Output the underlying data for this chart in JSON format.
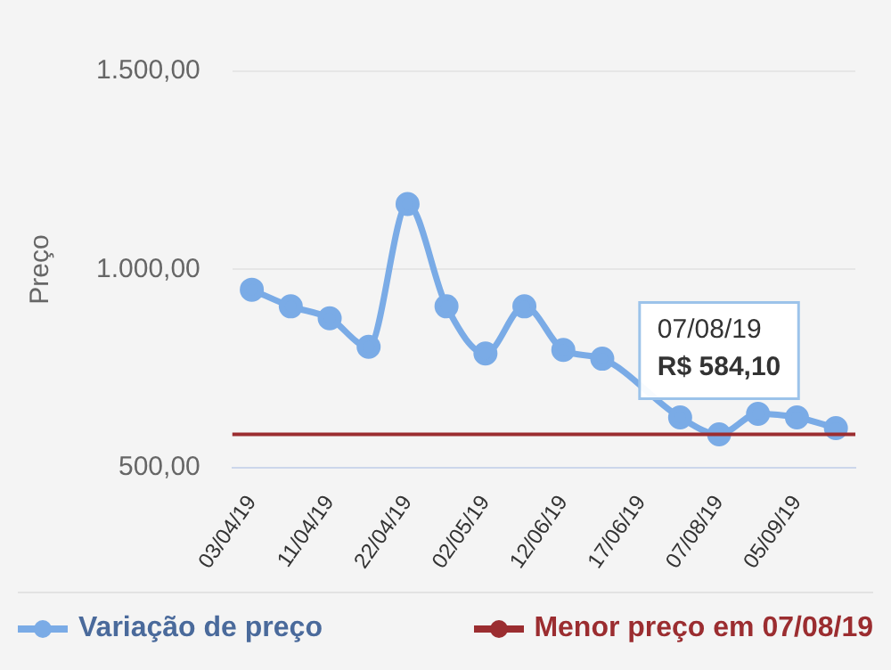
{
  "chart_data": {
    "type": "line",
    "ylabel": "Preço",
    "categories": [
      "03/04/19",
      null,
      "11/04/19",
      null,
      "22/04/19",
      null,
      "02/05/19",
      null,
      "12/06/19",
      null,
      "17/06/19",
      null,
      "07/08/19",
      null,
      "05/09/19",
      null
    ],
    "series": [
      {
        "name": "Variação de preço",
        "color": "#7aabe6",
        "values": [
          949,
          907,
          877,
          805,
          1165,
          907,
          788,
          907,
          797,
          775,
          null,
          627,
          584.1,
          636,
          627,
          600
        ]
      }
    ],
    "ylim": [
      500,
      1500
    ],
    "yticks": [
      {
        "value": 500,
        "label": "500,00"
      },
      {
        "value": 1000,
        "label": "1.000,00"
      },
      {
        "value": 1500,
        "label": "1.500,00"
      }
    ],
    "ref_lines": [
      {
        "axis": "y",
        "value": 584.1,
        "label": "Menor preço em 07/08/19",
        "color": "#9b2d30"
      }
    ],
    "annotations": [
      {
        "text": "07/08/19\nR$ 584,10",
        "x": "07/08/19",
        "y": 584.1
      }
    ],
    "grid": "y",
    "legend": "bottom",
    "marker": "circle",
    "line_style": "solid"
  }
}
